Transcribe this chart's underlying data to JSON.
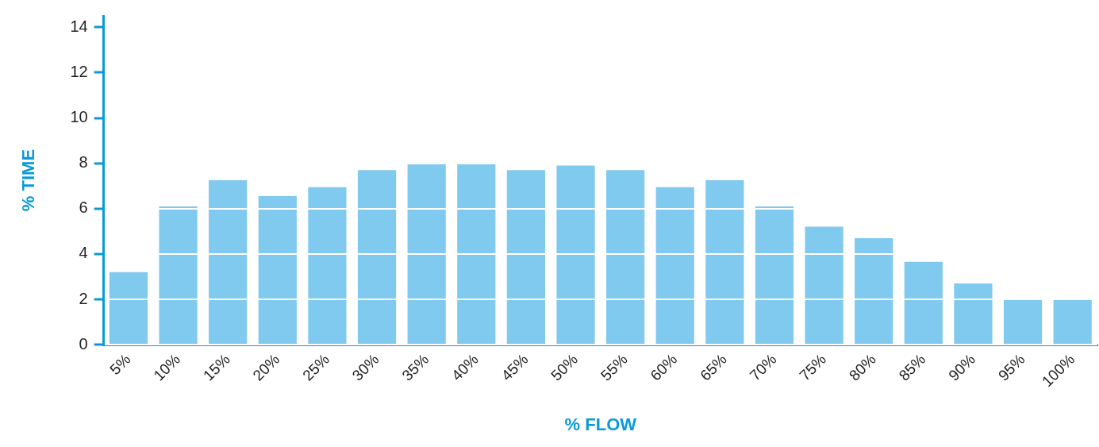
{
  "chart_data": {
    "type": "bar",
    "xlabel": "% FLOW",
    "ylabel": "% TIME",
    "categories": [
      "5%",
      "10%",
      "15%",
      "20%",
      "25%",
      "30%",
      "35%",
      "40%",
      "45%",
      "50%",
      "55%",
      "60%",
      "65%",
      "70%",
      "75%",
      "80%",
      "85%",
      "90%",
      "95%",
      "100%"
    ],
    "values": [
      3.2,
      6.1,
      7.25,
      6.55,
      6.95,
      7.7,
      7.95,
      7.95,
      7.7,
      7.9,
      7.7,
      6.95,
      7.25,
      6.1,
      5.2,
      4.7,
      3.65,
      2.7,
      2.0,
      2.0
    ],
    "color": "#80c9ef",
    "ylim": [
      0,
      14.5
    ],
    "yticks": [
      0,
      2,
      4,
      6,
      8,
      10,
      12,
      14
    ],
    "grid": "y",
    "legend": false
  }
}
